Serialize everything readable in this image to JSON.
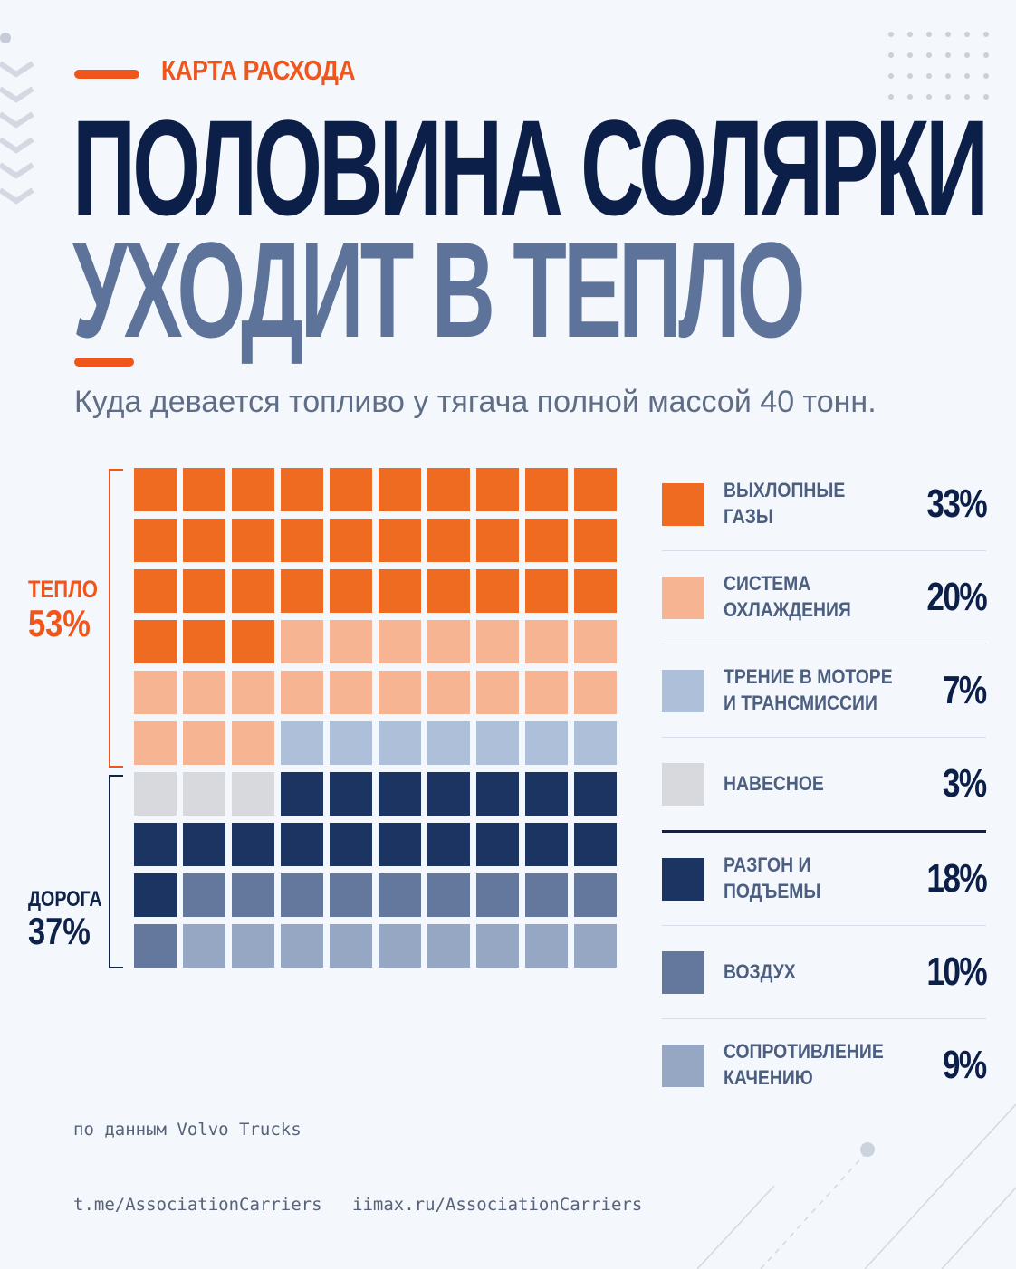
{
  "header": {
    "kicker": "КАРТА РАСХОДА",
    "title_line1": "ПОЛОВИНА СОЛЯРКИ",
    "title_line2": "УХОДИТ В ТЕПЛО",
    "subtitle": "Куда девается топливо у тягача полной массой 40 тонн."
  },
  "groups": {
    "heat": {
      "name": "ТЕПЛО",
      "percent": "53%",
      "color": "#f0561b"
    },
    "road": {
      "name": "ДОРОГА",
      "percent": "37%",
      "color": "#0f2249"
    }
  },
  "chart_data": {
    "type": "waffle",
    "title": "",
    "grid": {
      "rows": 10,
      "cols": 10
    },
    "order": [
      "exhaust",
      "cooling",
      "friction",
      "accessories",
      "acceleration",
      "air",
      "rolling"
    ],
    "categories": [
      {
        "id": "exhaust",
        "label": "ВЫХЛОПНЫЕ ГАЗЫ",
        "value": 33,
        "display": "33%",
        "color": "#f06b22",
        "group": "heat"
      },
      {
        "id": "cooling",
        "label": "СИСТЕМА\nОХЛАЖДЕНИЯ",
        "value": 20,
        "display": "20%",
        "color": "#f7b493",
        "group": "heat"
      },
      {
        "id": "friction",
        "label": "ТРЕНИЕ В МОТОРЕ\nИ ТРАНСМИССИИ",
        "value": 7,
        "display": "7%",
        "color": "#aebfd9",
        "group": "other"
      },
      {
        "id": "accessories",
        "label": "НАВЕСНОЕ",
        "value": 3,
        "display": "3%",
        "color": "#d8d9dc",
        "group": "other"
      },
      {
        "id": "acceleration",
        "label": "РАЗГОН И ПОДЪЕМЫ",
        "value": 18,
        "display": "18%",
        "color": "#1b3462",
        "group": "road"
      },
      {
        "id": "air",
        "label": "ВОЗДУХ",
        "value": 10,
        "display": "10%",
        "color": "#64789d",
        "group": "road"
      },
      {
        "id": "rolling",
        "label": "СОПРОТИВЛЕНИЕ\nКАЧЕНИЮ",
        "value": 9,
        "display": "9%",
        "color": "#96a7c4",
        "group": "road"
      }
    ]
  },
  "footer": {
    "source": "по данным Volvo Trucks",
    "link1": "t.me/AssociationCarriers",
    "link2": "iimax.ru/AssociationCarriers"
  }
}
